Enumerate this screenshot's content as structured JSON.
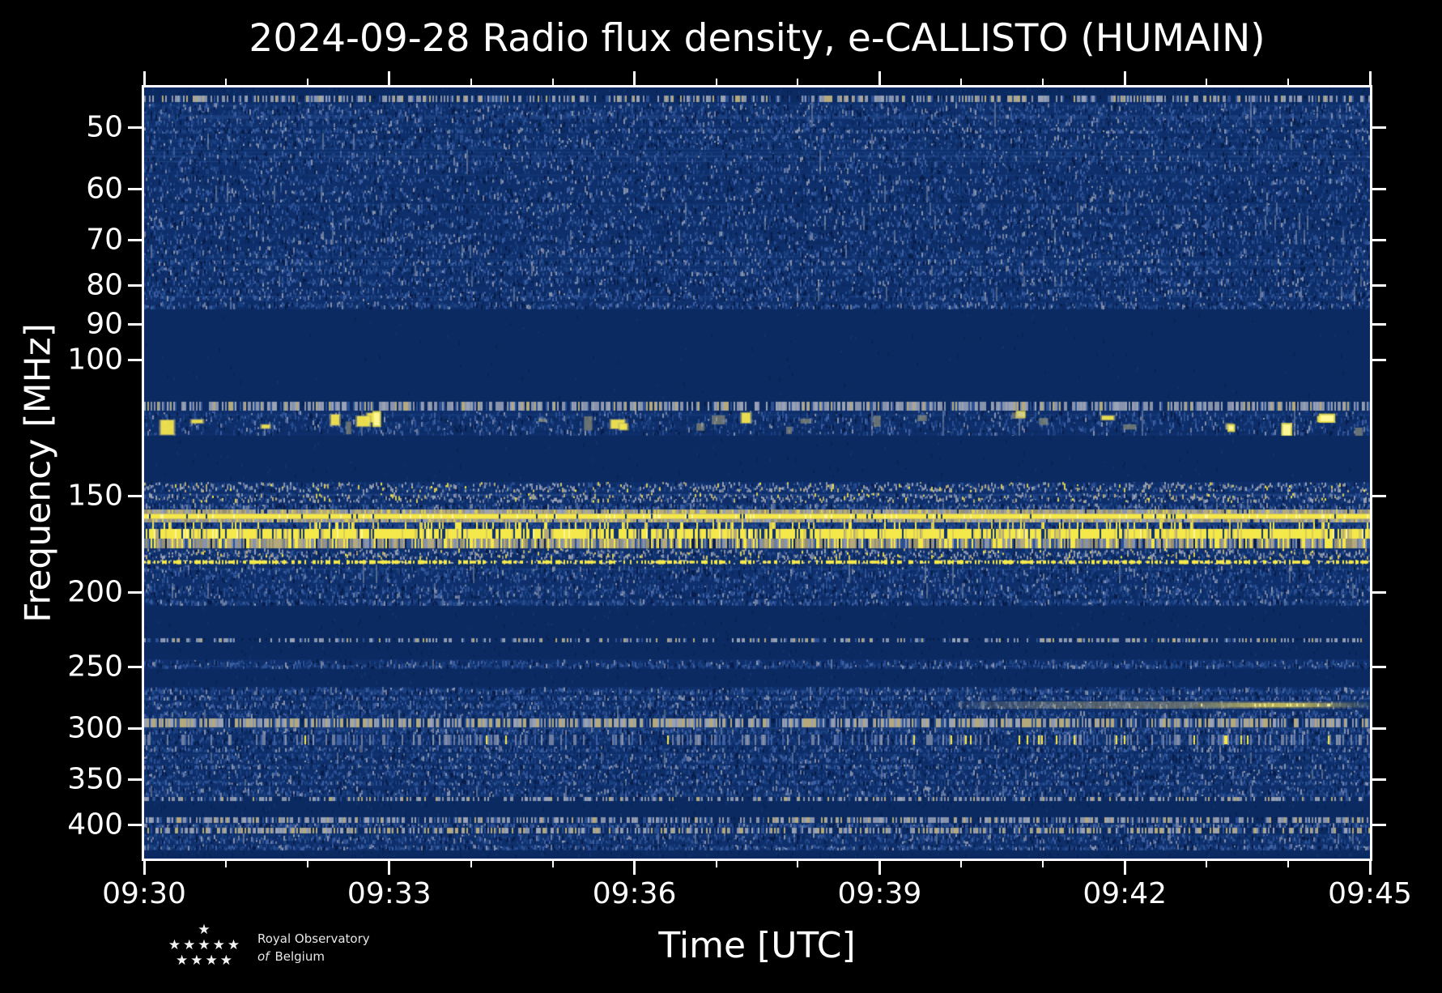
{
  "title": "2024-09-28 Radio flux density, e-CALLISTO (HUMAIN)",
  "axes": {
    "x": {
      "label": "Time [UTC]",
      "ticks": [
        "09:30",
        "09:33",
        "09:36",
        "09:39",
        "09:42",
        "09:45"
      ],
      "minor_ticks_per_interval": 2,
      "minutes_span": 15
    },
    "y": {
      "label": "Frequency [MHz]",
      "scale": "log",
      "inverted": true,
      "ticks": [
        "50",
        "60",
        "70",
        "80",
        "90",
        "100",
        "150",
        "200",
        "250",
        "300",
        "350",
        "400"
      ],
      "tick_values_mhz": [
        50,
        60,
        70,
        80,
        90,
        100,
        150,
        200,
        250,
        300,
        350,
        400
      ]
    }
  },
  "footer": {
    "org_line1": "Royal Observatory",
    "org_line2_prefix": "of",
    "org_line2": "Belgium",
    "star_rows": [
      1,
      5,
      4
    ]
  },
  "colors": {
    "background": "#000000",
    "foreground": "#ffffff",
    "quiet_navy": "#0b2a61",
    "noise_base": "#0e2f6b",
    "bright_yellow": "#f5e84a",
    "tan": "#b3a97c",
    "slate": "#6d7da0",
    "grey": "#99a2b6"
  },
  "chart_data": {
    "type": "heatmap",
    "title": "2024-09-28 Radio flux density, e-CALLISTO (HUMAIN)",
    "xlabel": "Time [UTC]",
    "ylabel": "Frequency [MHz]",
    "x_start": "09:30",
    "x_end": "09:45",
    "x_major_tick_minutes": 3,
    "x_minor_tick_minutes": 1,
    "y_scale": "log",
    "y_inverted": true,
    "y_min_mhz": 44.4,
    "y_max_mhz": 443,
    "seed": 20240928,
    "description": "Dynamic radio spectrum: dark navy quiet zones, speckled blue galactic/noise bands, bright yellow terrestrial RFI lines near 157-185 MHz, burst speckles near 117-125 MHz, warm smear near 280 MHz late in interval.",
    "bands": [
      {
        "f0": 44.4,
        "f1": 45.5,
        "type": "quiet",
        "level": 0
      },
      {
        "f0": 45.5,
        "f1": 46.4,
        "type": "dotline",
        "level": 0.55
      },
      {
        "f0": 46.4,
        "f1": 50.0,
        "type": "noise",
        "level": 0.6
      },
      {
        "f0": 50.0,
        "f1": 51.0,
        "type": "noise",
        "level": 0.42
      },
      {
        "f0": 51.0,
        "f1": 53.5,
        "type": "noise",
        "level": 0.6
      },
      {
        "f0": 53.5,
        "f1": 57.5,
        "type": "noise",
        "level": 0.48
      },
      {
        "f0": 57.5,
        "f1": 59.5,
        "type": "noise",
        "level": 0.33
      },
      {
        "f0": 59.5,
        "f1": 62.5,
        "type": "noise",
        "level": 0.55
      },
      {
        "f0": 62.5,
        "f1": 65.0,
        "type": "noise",
        "level": 0.45
      },
      {
        "f0": 65.0,
        "f1": 68.0,
        "type": "noise",
        "level": 0.65
      },
      {
        "f0": 68.0,
        "f1": 71.0,
        "type": "noise",
        "level": 0.48
      },
      {
        "f0": 71.0,
        "f1": 74.0,
        "type": "noise",
        "level": 0.6
      },
      {
        "f0": 74.0,
        "f1": 75.5,
        "type": "noise",
        "level": 0.42
      },
      {
        "f0": 75.5,
        "f1": 78.0,
        "type": "noise",
        "level": 0.65
      },
      {
        "f0": 78.0,
        "f1": 80.5,
        "type": "noise",
        "level": 0.5
      },
      {
        "f0": 80.5,
        "f1": 84.0,
        "type": "noise",
        "level": 0.62
      },
      {
        "f0": 84.0,
        "f1": 86.0,
        "type": "noise",
        "level": 0.38
      },
      {
        "f0": 86.0,
        "f1": 113.5,
        "type": "quiet",
        "level": 0
      },
      {
        "f0": 113.5,
        "f1": 116.5,
        "type": "dotline",
        "level": 0.7
      },
      {
        "f0": 116.5,
        "f1": 125.5,
        "type": "bursts",
        "level": 0.5
      },
      {
        "f0": 125.5,
        "f1": 144.0,
        "type": "quiet",
        "level": 0
      },
      {
        "f0": 144.0,
        "f1": 148.5,
        "type": "speckle",
        "level": 0.62
      },
      {
        "f0": 148.5,
        "f1": 153.5,
        "type": "speckle",
        "level": 0.52
      },
      {
        "f0": 153.5,
        "f1": 156.5,
        "type": "noise",
        "level": 0.5
      },
      {
        "f0": 156.5,
        "f1": 158.4,
        "type": "tanline",
        "level": 0.75
      },
      {
        "f0": 158.4,
        "f1": 161.0,
        "type": "yellowline",
        "level": 1.0
      },
      {
        "f0": 161.0,
        "f1": 162.6,
        "type": "tanline",
        "level": 0.6
      },
      {
        "f0": 162.6,
        "f1": 165.6,
        "type": "yellowstreaks",
        "level": 0.45
      },
      {
        "f0": 165.6,
        "f1": 170.6,
        "type": "yellowline2",
        "level": 0.95
      },
      {
        "f0": 170.6,
        "f1": 175.6,
        "type": "tanstreaks",
        "level": 0.7
      },
      {
        "f0": 175.6,
        "f1": 181.5,
        "type": "speckle",
        "level": 0.6
      },
      {
        "f0": 181.5,
        "f1": 184.5,
        "type": "yellowdots",
        "level": 0.8
      },
      {
        "f0": 184.5,
        "f1": 195.0,
        "type": "noise",
        "level": 0.55
      },
      {
        "f0": 195.0,
        "f1": 204.0,
        "type": "noise",
        "level": 0.68
      },
      {
        "f0": 204.0,
        "f1": 208.5,
        "type": "noise",
        "level": 0.45
      },
      {
        "f0": 208.5,
        "f1": 229.5,
        "type": "quiet",
        "level": 0
      },
      {
        "f0": 229.5,
        "f1": 232.5,
        "type": "dotline",
        "level": 0.45
      },
      {
        "f0": 232.5,
        "f1": 244.5,
        "type": "quiet",
        "level": 0
      },
      {
        "f0": 244.5,
        "f1": 251.5,
        "type": "noise",
        "level": 0.55
      },
      {
        "f0": 251.5,
        "f1": 265.5,
        "type": "quiet",
        "level": 0
      },
      {
        "f0": 265.5,
        "f1": 272.0,
        "type": "noise",
        "level": 0.55
      },
      {
        "f0": 272.0,
        "f1": 276.5,
        "type": "noise",
        "level": 0.42
      },
      {
        "f0": 276.5,
        "f1": 284.0,
        "type": "noise",
        "level": 0.5
      },
      {
        "f0": 284.0,
        "f1": 291.5,
        "type": "noise",
        "level": 0.55
      },
      {
        "f0": 291.5,
        "f1": 299.5,
        "type": "dottan",
        "level": 0.8
      },
      {
        "f0": 299.5,
        "f1": 306.0,
        "type": "noise",
        "level": 0.5
      },
      {
        "f0": 306.0,
        "f1": 316.0,
        "type": "streaks",
        "level": 0.6
      },
      {
        "f0": 316.0,
        "f1": 323.0,
        "type": "noise",
        "level": 0.5
      },
      {
        "f0": 323.0,
        "f1": 334.0,
        "type": "noise",
        "level": 0.62
      },
      {
        "f0": 334.0,
        "f1": 340.0,
        "type": "noise",
        "level": 0.42
      },
      {
        "f0": 340.0,
        "f1": 350.0,
        "type": "noise",
        "level": 0.6
      },
      {
        "f0": 350.0,
        "f1": 356.0,
        "type": "noise",
        "level": 0.38
      },
      {
        "f0": 356.0,
        "f1": 369.0,
        "type": "noise",
        "level": 0.55
      },
      {
        "f0": 369.0,
        "f1": 373.0,
        "type": "dotline",
        "level": 0.5
      },
      {
        "f0": 373.0,
        "f1": 392.0,
        "type": "quiet",
        "level": 0
      },
      {
        "f0": 392.0,
        "f1": 398.0,
        "type": "dotline",
        "level": 0.6
      },
      {
        "f0": 398.0,
        "f1": 404.0,
        "type": "noise",
        "level": 0.48
      },
      {
        "f0": 404.0,
        "f1": 411.0,
        "type": "dottan",
        "level": 0.62
      },
      {
        "f0": 411.0,
        "f1": 424.0,
        "type": "noise",
        "level": 0.55
      },
      {
        "f0": 424.0,
        "f1": 432.0,
        "type": "noise",
        "level": 0.45
      },
      {
        "f0": 432.0,
        "f1": 443.0,
        "type": "quiet",
        "level": 0
      }
    ],
    "overlays": [
      {
        "type": "warmsmear",
        "f0": 277.0,
        "f1": 283.0,
        "x_start": 0.66
      }
    ]
  }
}
